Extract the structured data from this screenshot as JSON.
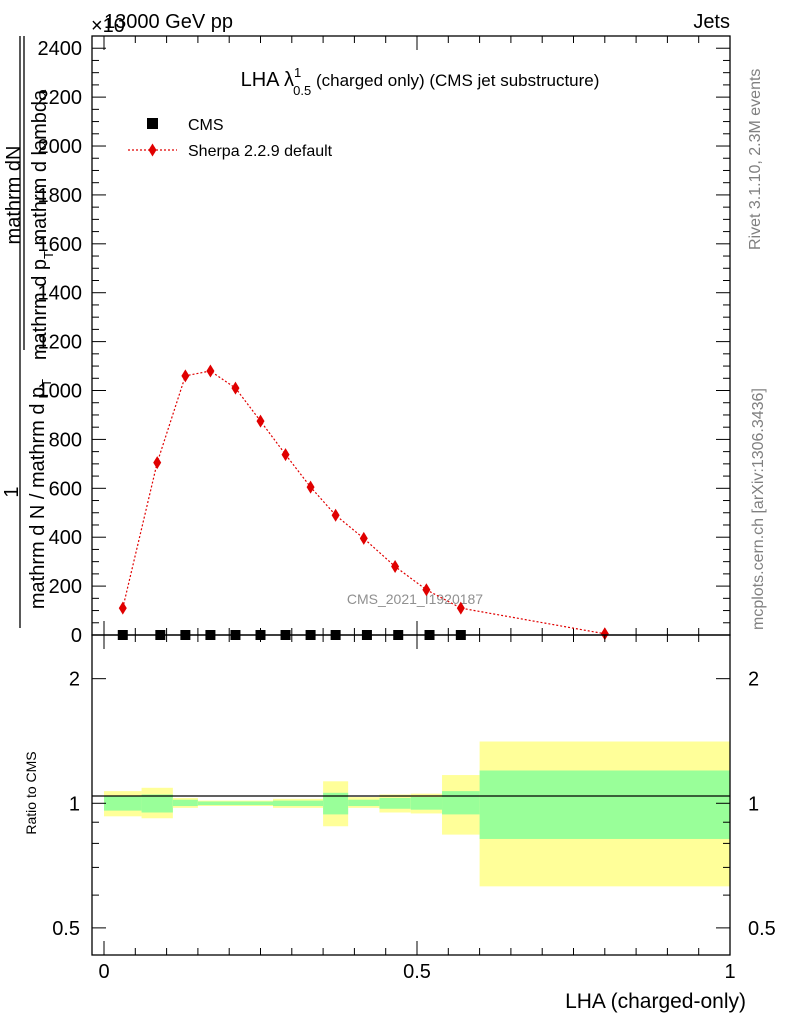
{
  "header": {
    "left": "13000 GeV pp",
    "right": "Jets",
    "exponent": "×10"
  },
  "side": {
    "top": "Rivet 3.1.10,  2.3M events",
    "bottom": "mcplots.cern.ch [arXiv:1306.3436]"
  },
  "watermark": "CMS_2021_I1920187",
  "colors": {
    "mc": "#e00000",
    "band_inner": "#99ff99",
    "band_outer": "#ffff99",
    "data": "#000000"
  },
  "chart_data": [
    {
      "type": "scatter",
      "title": "LHA λ",
      "title_sup": "1",
      "title_sub": "0.5",
      "title_rest": " (charged only) (CMS jet substructure)",
      "ylabel_num": "1",
      "ylabel_num_line1": "mathrm dN",
      "ylabel_num_line2": "mathrm d p",
      "ylabel_num_sub": "T",
      "ylabel_num_line3": " mathrm d lambda",
      "ylabel_den_line1": "mathrm d N / mathrm d p",
      "ylabel_den_sub": "T",
      "xlim": [
        0,
        1
      ],
      "ylim": [
        0,
        2450
      ],
      "yticks": [
        "0",
        "200",
        "400",
        "600",
        "800",
        "1000",
        "1200",
        "1400",
        "1600",
        "1800",
        "2000",
        "2200",
        "2400"
      ],
      "legend": {
        "position": "top-left",
        "data_label": "CMS",
        "mc_label": "Sherpa 2.2.9 default"
      },
      "series": [
        {
          "name": "CMS",
          "x": [
            0.03,
            0.09,
            0.13,
            0.17,
            0.21,
            0.25,
            0.29,
            0.33,
            0.37,
            0.42,
            0.47,
            0.52,
            0.57
          ],
          "y": [
            0,
            0,
            0,
            0,
            0,
            0,
            0,
            0,
            0,
            0,
            0,
            0,
            0
          ]
        },
        {
          "name": "Sherpa 2.2.9 default",
          "x": [
            0.03,
            0.085,
            0.13,
            0.17,
            0.21,
            0.25,
            0.29,
            0.33,
            0.37,
            0.415,
            0.465,
            0.515,
            0.57,
            0.8
          ],
          "y": [
            110,
            705,
            1060,
            1080,
            1010,
            875,
            738,
            605,
            490,
            395,
            280,
            185,
            110,
            5
          ]
        }
      ]
    },
    {
      "type": "area",
      "ylabel": "Ratio to CMS",
      "xlabel": "LHA (charged-only)",
      "xlim": [
        0,
        1
      ],
      "ylim": [
        0.43,
        2.55
      ],
      "log_y": true,
      "xticks": [
        "0",
        "0.5",
        "1"
      ],
      "yticks": [
        "0.5",
        "1",
        "2"
      ],
      "reference": 1,
      "bins": [
        {
          "x0": 0.0,
          "x1": 0.06,
          "outer": [
            0.93,
            1.07
          ],
          "inner": [
            0.96,
            1.04
          ]
        },
        {
          "x0": 0.06,
          "x1": 0.11,
          "outer": [
            0.92,
            1.09
          ],
          "inner": [
            0.95,
            1.05
          ]
        },
        {
          "x0": 0.11,
          "x1": 0.15,
          "outer": [
            0.975,
            1.03
          ],
          "inner": [
            0.985,
            1.02
          ]
        },
        {
          "x0": 0.15,
          "x1": 0.27,
          "outer": [
            0.985,
            1.015
          ],
          "inner": [
            0.99,
            1.01
          ]
        },
        {
          "x0": 0.27,
          "x1": 0.35,
          "outer": [
            0.975,
            1.025
          ],
          "inner": [
            0.985,
            1.015
          ]
        },
        {
          "x0": 0.35,
          "x1": 0.39,
          "outer": [
            0.88,
            1.13
          ],
          "inner": [
            0.94,
            1.06
          ]
        },
        {
          "x0": 0.39,
          "x1": 0.44,
          "outer": [
            0.975,
            1.035
          ],
          "inner": [
            0.985,
            1.02
          ]
        },
        {
          "x0": 0.44,
          "x1": 0.49,
          "outer": [
            0.95,
            1.05
          ],
          "inner": [
            0.97,
            1.03
          ]
        },
        {
          "x0": 0.49,
          "x1": 0.54,
          "outer": [
            0.945,
            1.055
          ],
          "inner": [
            0.965,
            1.035
          ]
        },
        {
          "x0": 0.54,
          "x1": 0.6,
          "outer": [
            0.84,
            1.17
          ],
          "inner": [
            0.94,
            1.07
          ]
        },
        {
          "x0": 0.6,
          "x1": 1.0,
          "outer": [
            0.63,
            1.41
          ],
          "inner": [
            0.82,
            1.2
          ]
        }
      ]
    }
  ]
}
